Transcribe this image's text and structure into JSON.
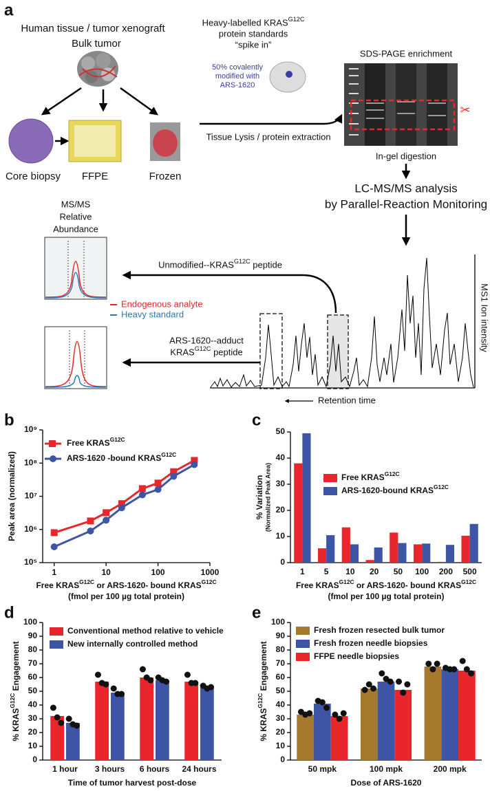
{
  "diagram": {
    "panel": "a",
    "source_title": "Human tissue / tumor xenograft",
    "bulk": "Bulk tumor",
    "core": "Core biopsy",
    "ffpe": "FFPE",
    "frozen": "Frozen",
    "std_1": "Heavy-labelled KRASG12C",
    "std_2": "protein standards",
    "std_3": "“spike in”",
    "mod_1": "50% covalently",
    "mod_2": "modified with",
    "mod_3": "ARS-1620",
    "lysis": "Tissue Lysis / protein extraction",
    "sds": "SDS-PAGE enrichment",
    "digest": "In-gel digestion",
    "lc_1": "LC-MS/MS analysis",
    "lc_2": "by Parallel-Reaction Monitoring",
    "msms_1": "MS/MS",
    "msms_2": "Relative",
    "msms_3": "Abundance",
    "unmod": "Unmodified--KRASG12C peptide",
    "endo": "Endogenous analyte",
    "heavy": "Heavy standard",
    "adduct_1": "ARS-1620--adduct",
    "adduct_2": "KRASG12C peptide",
    "ms1": "MS1 Ion intensity",
    "rt": "Retention time"
  },
  "chart_data": [
    {
      "type": "line",
      "panel": "b",
      "ylabel": "Peak area (normalized)",
      "xlabel": "Free KRASG12C or ARS-1620- bound KRASG12C",
      "xlabel_sub": "(fmol per 100 µg  total protein)",
      "log_x": true,
      "log_y": true,
      "x": [
        1,
        5,
        10,
        20,
        50,
        100,
        200,
        500
      ],
      "xlim": [
        0.6,
        1000
      ],
      "xticks": [
        1,
        10,
        100,
        1000
      ],
      "ylim": [
        100000,
        1000000000
      ],
      "yticks": [
        {
          "value": 100000,
          "label": "10⁵"
        },
        {
          "value": 1000000,
          "label": "10⁶"
        },
        {
          "value": 10000000,
          "label": "10⁷"
        },
        {
          "value": 100000000,
          "label": "10⁸"
        },
        {
          "value": 1000000000,
          "label": "10⁹"
        }
      ],
      "series": [
        {
          "name": "Free KRASG12C",
          "color": "#e8262b",
          "marker": "square",
          "values": [
            800000,
            1800000,
            3200000,
            6000000,
            17000000,
            25000000,
            55000000,
            120000000
          ]
        },
        {
          "name": "ARS-1620 -bound KRASG12C",
          "color": "#3e55a6",
          "marker": "circle",
          "values": [
            300000,
            900000,
            1900000,
            4500000,
            11000000,
            16000000,
            40000000,
            90000000
          ]
        }
      ]
    },
    {
      "type": "bar",
      "panel": "c",
      "ylabel": "% Variation",
      "ylabel_sub": "(Normalized Peak Area)",
      "xlabel": "Free KRASG12C or ARS-1620- bound KRASG12C",
      "xlabel_sub": "(fmol per 100 µg  total protein)",
      "categories": [
        "1",
        "5",
        "10",
        "20",
        "50",
        "100",
        "200",
        "500"
      ],
      "ylim": [
        0,
        50
      ],
      "yticks": [
        0,
        10,
        20,
        30,
        40,
        50
      ],
      "series": [
        {
          "name": "Free KRASG12C",
          "color": "#e8262b",
          "values": [
            38,
            5.5,
            13.5,
            1,
            11.5,
            7,
            0.3,
            10.3
          ]
        },
        {
          "name": "ARS-1620-bound KRASG12C",
          "color": "#3e55a6",
          "values": [
            49.5,
            10.5,
            7,
            5.8,
            7.5,
            7.3,
            6.8,
            14.8
          ]
        }
      ]
    },
    {
      "type": "bar",
      "panel": "d",
      "ylabel": "% KRASG12C Engagement",
      "xlabel": "Time of tumor harvest post-dose",
      "categories": [
        "1 hour",
        "3 hours",
        "6 hours",
        "24 hours"
      ],
      "ylim": [
        0,
        100
      ],
      "yticks": [
        0,
        10,
        20,
        30,
        40,
        50,
        60,
        70,
        80,
        90,
        100
      ],
      "series": [
        {
          "name": "Conventional method relative to vehicle",
          "color": "#e8262b",
          "values": [
            32,
            57,
            60,
            57
          ],
          "points": [
            [
              38,
              31,
              27
            ],
            [
              62,
              56,
              55
            ],
            [
              66,
              60,
              58
            ],
            [
              62,
              56,
              56
            ]
          ]
        },
        {
          "name": "New internally controlled method",
          "color": "#3e55a6",
          "values": [
            27,
            49,
            58,
            53
          ],
          "points": [
            [
              30,
              26,
              25
            ],
            [
              52,
              48,
              48
            ],
            [
              60,
              58,
              57
            ],
            [
              54,
              52,
              53
            ]
          ]
        }
      ]
    },
    {
      "type": "bar",
      "panel": "e",
      "ylabel": "% KRASG12C Engagement",
      "xlabel": "Dose of ARS-1620",
      "categories": [
        "50 mpk",
        "100 mpk",
        "200 mpk"
      ],
      "ylim": [
        0,
        100
      ],
      "yticks": [
        0,
        10,
        20,
        30,
        40,
        50,
        60,
        70,
        80,
        90,
        100
      ],
      "series": [
        {
          "name": "Fresh frozen resected bulk tumor",
          "color": "#a57a2e",
          "values": [
            33,
            52,
            68
          ],
          "points": [
            [
              35,
              33,
              34
            ],
            [
              51,
              55,
              52
            ],
            [
              70,
              66,
              70
            ]
          ]
        },
        {
          "name": "Fresh frozen needle biopsies",
          "color": "#3e55a6",
          "values": [
            41,
            57,
            66
          ],
          "points": [
            [
              43,
              42,
              38
            ],
            [
              63,
              59,
              57
            ],
            [
              67,
              66,
              66
            ]
          ]
        },
        {
          "name": "FFPE needle biopsies",
          "color": "#e8262b",
          "values": [
            32,
            51,
            65
          ],
          "points": [
            [
              33,
              30,
              34
            ],
            [
              57,
              49,
              55
            ],
            [
              72,
              66,
              63
            ]
          ]
        }
      ]
    }
  ]
}
